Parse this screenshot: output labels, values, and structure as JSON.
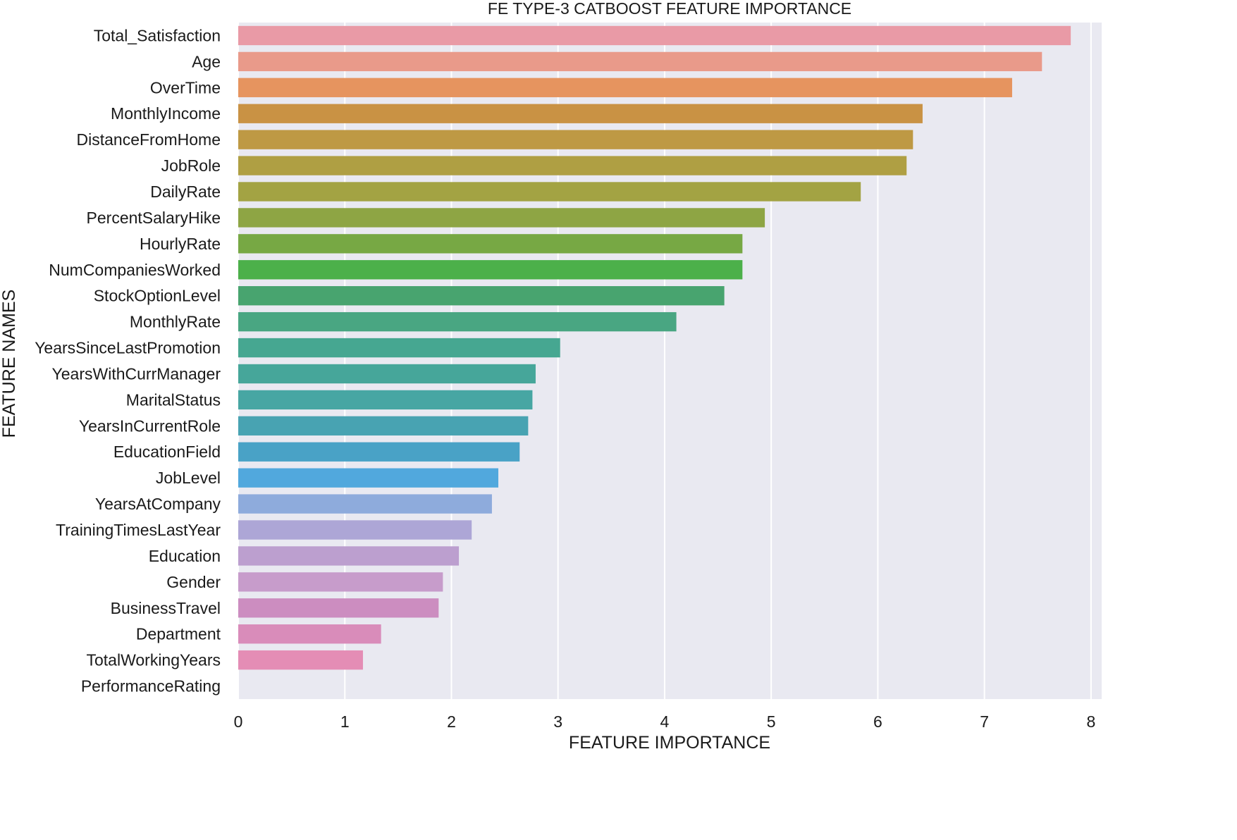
{
  "chart_data": {
    "type": "bar",
    "orientation": "horizontal",
    "title": "FE TYPE-3 CATBOOST FEATURE IMPORTANCE",
    "xlabel": "FEATURE IMPORTANCE",
    "ylabel": "FEATURE NAMES",
    "xlim": [
      0,
      8.1
    ],
    "xticks": [
      0,
      1,
      2,
      3,
      4,
      5,
      6,
      7,
      8
    ],
    "grid": true,
    "background": "#e9e9f1",
    "categories": [
      "Total_Satisfaction",
      "Age",
      "OverTime",
      "MonthlyIncome",
      "DistanceFromHome",
      "JobRole",
      "DailyRate",
      "PercentSalaryHike",
      "HourlyRate",
      "NumCompaniesWorked",
      "StockOptionLevel",
      "MonthlyRate",
      "YearsSinceLastPromotion",
      "YearsWithCurrManager",
      "MaritalStatus",
      "YearsInCurrentRole",
      "EducationField",
      "JobLevel",
      "YearsAtCompany",
      "TrainingTimesLastYear",
      "Education",
      "Gender",
      "BusinessTravel",
      "Department",
      "TotalWorkingYears",
      "PerformanceRating"
    ],
    "values": [
      7.81,
      7.54,
      7.26,
      6.42,
      6.33,
      6.27,
      5.84,
      4.94,
      4.73,
      4.73,
      4.56,
      4.11,
      3.02,
      2.79,
      2.76,
      2.72,
      2.64,
      2.44,
      2.38,
      2.19,
      2.07,
      1.92,
      1.88,
      1.34,
      1.17,
      0.0
    ],
    "colors": [
      "#e99aa6",
      "#e99a8a",
      "#e6945f",
      "#c99244",
      "#be9944",
      "#af9f43",
      "#a3a343",
      "#8ea544",
      "#77a844",
      "#4cb04a",
      "#48a46f",
      "#49a682",
      "#46a791",
      "#46a69a",
      "#47a6a3",
      "#48a3b2",
      "#49a2c6",
      "#51a8dd",
      "#8eabdc",
      "#ada6d6",
      "#bc9fcf",
      "#c79ccb",
      "#cc8dc0",
      "#d98cba",
      "#e48db5",
      "#e9a0c0"
    ]
  }
}
